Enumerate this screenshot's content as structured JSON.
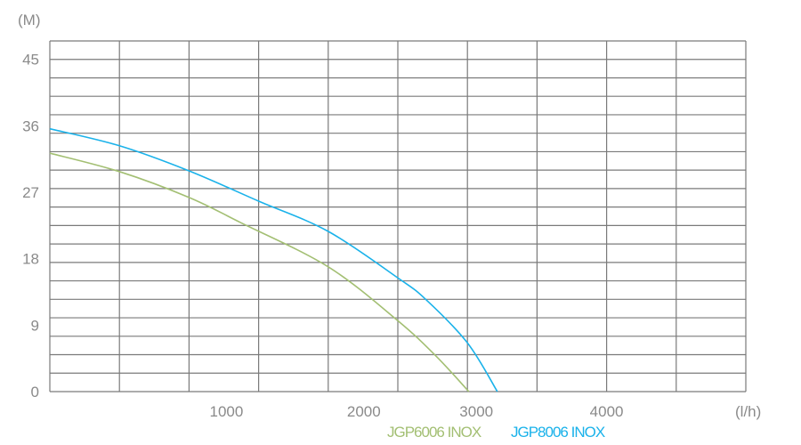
{
  "chart_data": {
    "type": "line",
    "xlabel": "(l/h)",
    "ylabel": "(M)",
    "xlim": [
      0,
      5000
    ],
    "ylim": [
      0,
      47.5
    ],
    "x_ticks": [
      1000,
      2000,
      3000,
      4000
    ],
    "y_ticks": [
      0,
      9,
      18,
      27,
      36,
      45
    ],
    "x_grid_step": 500,
    "y_grid_step": 2.5,
    "grid": true,
    "legend_placement": "bottom",
    "series": [
      {
        "name": "JGP6006 INOX",
        "color": "#a3bf73",
        "x": [
          0,
          500,
          1000,
          1370,
          2000,
          2500,
          2775,
          3010
        ],
        "y": [
          32.3,
          29.8,
          26.3,
          22.9,
          16.9,
          9.6,
          4.8,
          0
        ]
      },
      {
        "name": "JGP8006 INOX",
        "color": "#1ab2ea",
        "x": [
          0,
          500,
          1000,
          1500,
          2000,
          2500,
          2700,
          3000,
          3215
        ],
        "y": [
          35.6,
          33.3,
          29.9,
          25.8,
          21.7,
          15.4,
          12.5,
          6.6,
          0
        ]
      }
    ]
  }
}
